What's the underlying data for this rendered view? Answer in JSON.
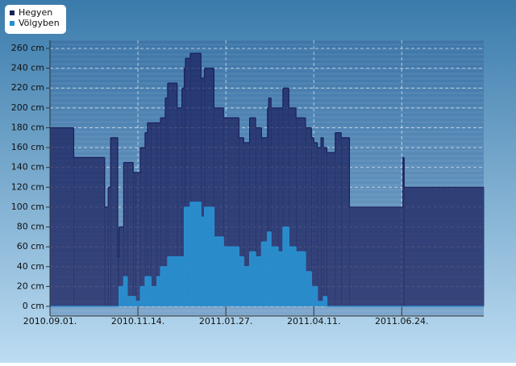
{
  "chart_data": {
    "type": "step-area",
    "x": [
      "2010-09-01",
      "2010-09-21",
      "2010-10-17",
      "2010-10-20",
      "2010-10-22",
      "2010-10-28",
      "2010-10-29",
      "2010-11-02",
      "2010-11-05",
      "2010-11-10",
      "2010-11-12",
      "2010-11-16",
      "2010-11-20",
      "2010-11-22",
      "2010-11-25",
      "2010-11-30",
      "2010-12-03",
      "2010-12-07",
      "2010-12-09",
      "2010-12-17",
      "2010-12-21",
      "2010-12-23",
      "2010-12-24",
      "2010-12-28",
      "2011-01-06",
      "2011-01-09",
      "2011-01-17",
      "2011-01-25",
      "2011-02-07",
      "2011-02-11",
      "2011-02-16",
      "2011-02-21",
      "2011-02-26",
      "2011-03-03",
      "2011-03-04",
      "2011-03-06",
      "2011-03-12",
      "2011-03-16",
      "2011-03-21",
      "2011-03-27",
      "2011-04-04",
      "2011-04-09",
      "2011-04-11",
      "2011-04-14",
      "2011-04-17",
      "2011-04-19",
      "2011-04-22",
      "2011-04-29",
      "2011-05-04",
      "2011-05-11",
      "2011-06-25",
      "2011-06-26",
      "2011-09-01"
    ],
    "series": [
      {
        "name": "Hegyen",
        "color": "#1a1f5c",
        "values": [
          180,
          150,
          100,
          120,
          170,
          50,
          80,
          145,
          145,
          135,
          135,
          160,
          175,
          185,
          185,
          185,
          190,
          210,
          225,
          200,
          220,
          240,
          250,
          255,
          230,
          240,
          200,
          190,
          170,
          165,
          190,
          180,
          170,
          200,
          210,
          200,
          200,
          220,
          200,
          190,
          180,
          170,
          165,
          160,
          170,
          160,
          155,
          175,
          170,
          100,
          150,
          120,
          120
        ]
      },
      {
        "name": "Völgyben",
        "color": "#2a8fd0",
        "values": [
          0,
          0,
          0,
          0,
          0,
          0,
          20,
          30,
          10,
          10,
          5,
          20,
          30,
          30,
          20,
          30,
          40,
          40,
          50,
          50,
          50,
          100,
          100,
          105,
          90,
          100,
          70,
          60,
          50,
          40,
          55,
          50,
          65,
          75,
          75,
          60,
          55,
          80,
          60,
          55,
          35,
          20,
          20,
          5,
          5,
          10,
          0,
          0,
          0,
          0,
          0,
          0,
          0
        ]
      }
    ],
    "xlim": [
      "2010-09-01",
      "2011-09-01"
    ],
    "xticks": [
      {
        "value": "2010-09-01",
        "label": "2010.09.01."
      },
      {
        "value": "2010-11-14",
        "label": "2010.11.14."
      },
      {
        "value": "2011-01-27",
        "label": "2011.01.27."
      },
      {
        "value": "2011-04-11",
        "label": "2011.04.11."
      },
      {
        "value": "2011-06-24",
        "label": "2011.06.24."
      }
    ],
    "ylim": [
      0,
      260
    ],
    "yticks": [
      {
        "value": 0,
        "label": "0 cm"
      },
      {
        "value": 20,
        "label": "20 cm"
      },
      {
        "value": 40,
        "label": "40 cm"
      },
      {
        "value": 60,
        "label": "60 cm"
      },
      {
        "value": 80,
        "label": "80 cm"
      },
      {
        "value": 100,
        "label": "100 cm"
      },
      {
        "value": 120,
        "label": "120 cm"
      },
      {
        "value": 140,
        "label": "140 cm"
      },
      {
        "value": 160,
        "label": "160 cm"
      },
      {
        "value": 180,
        "label": "180 cm"
      },
      {
        "value": 200,
        "label": "200 cm"
      },
      {
        "value": 220,
        "label": "220 cm"
      },
      {
        "value": 240,
        "label": "240 cm"
      },
      {
        "value": 260,
        "label": "260 cm"
      }
    ],
    "grid": true,
    "legend": "top-left"
  }
}
